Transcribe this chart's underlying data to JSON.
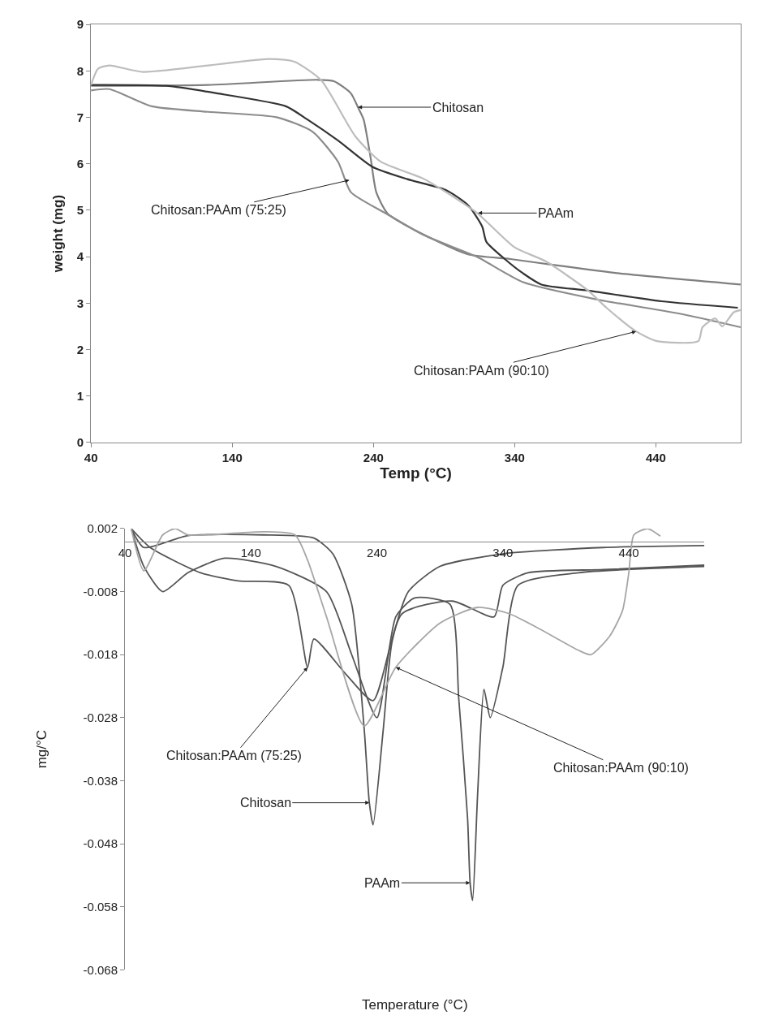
{
  "chart_data": [
    {
      "type": "line",
      "xlabel": "Temp (°C)",
      "ylabel": "weight (mg)",
      "xlim": [
        40,
        500
      ],
      "xticks": [
        40,
        140,
        240,
        340,
        440
      ],
      "ylim": [
        0,
        9
      ],
      "yticks": [
        0,
        1,
        2,
        3,
        4,
        5,
        6,
        7,
        8,
        9
      ],
      "marker": "none",
      "line_style": "solid",
      "series": [
        {
          "color": "#7f7f7f",
          "x": [
            40,
            123,
            200,
            212,
            224,
            229,
            233,
            238,
            242,
            250,
            270,
            307,
            337,
            368,
            414,
            500
          ],
          "values": [
            7.68,
            7.7,
            7.81,
            7.78,
            7.52,
            7.22,
            6.96,
            6.13,
            5.39,
            4.93,
            4.56,
            4.05,
            3.95,
            3.82,
            3.64,
            3.4
          ]
        },
        {
          "color": "#333333",
          "x": [
            40,
            93,
            129,
            178,
            193,
            215,
            239,
            264,
            291,
            307,
            317,
            320,
            333,
            346,
            359,
            392,
            444,
            498
          ],
          "values": [
            7.7,
            7.68,
            7.52,
            7.24,
            6.96,
            6.5,
            5.94,
            5.67,
            5.44,
            5.11,
            4.65,
            4.32,
            3.95,
            3.64,
            3.4,
            3.27,
            3.04,
            2.9
          ]
        },
        {
          "color": "#8c8c8c",
          "x": [
            40,
            53,
            83,
            123,
            172,
            197,
            215,
            224,
            249,
            276,
            313,
            346,
            398,
            459,
            500
          ],
          "values": [
            7.58,
            7.61,
            7.24,
            7.12,
            7.0,
            6.69,
            6.04,
            5.39,
            4.93,
            4.46,
            4.0,
            3.45,
            3.08,
            2.76,
            2.48
          ]
        },
        {
          "color": "#bdbdbd",
          "x": [
            40,
            45,
            53,
            77,
            166,
            184,
            203,
            227,
            245,
            276,
            313,
            340,
            362,
            392,
            405,
            426,
            441,
            470,
            473,
            482,
            487,
            495,
            500
          ],
          "values": [
            7.7,
            8.05,
            8.12,
            7.98,
            8.26,
            8.2,
            7.8,
            6.6,
            6.05,
            5.67,
            4.95,
            4.2,
            3.9,
            3.27,
            2.9,
            2.39,
            2.18,
            2.18,
            2.48,
            2.67,
            2.5,
            2.8,
            2.85
          ]
        }
      ],
      "annotations": [
        {
          "text": "Chitosan",
          "x": 229,
          "y": 7.22
        },
        {
          "text": "PAAm",
          "x": 314,
          "y": 4.94
        },
        {
          "text": "Chitosan:PAAm (75:25)",
          "x": 223,
          "y": 5.65
        },
        {
          "text": "Chitosan:PAAm (90:10)",
          "x": 426,
          "y": 2.39
        }
      ]
    },
    {
      "type": "line",
      "xlabel": "Temperature (°C)",
      "ylabel": "mg/°C",
      "xlim": [
        40,
        500
      ],
      "xticks": [
        40,
        140,
        240,
        340,
        440
      ],
      "ylim": [
        -0.068,
        0.002
      ],
      "yticks": [
        -0.068,
        -0.058,
        -0.048,
        -0.038,
        -0.028,
        -0.018,
        -0.008,
        0.002
      ],
      "marker": "none",
      "line_style": "solid",
      "series": [
        {
          "color": "#555555",
          "x": [
            45,
            55,
            90,
            150,
            190,
            205,
            220,
            230,
            234,
            237,
            245,
            252,
            265,
            290,
            340,
            420,
            500
          ],
          "values": [
            0.002,
            -0.001,
            0.0009,
            0.001,
            0.0005,
            -0.002,
            -0.01,
            -0.03,
            -0.0415,
            -0.045,
            -0.03,
            -0.016,
            -0.008,
            -0.004,
            -0.002,
            -0.001,
            -0.0007
          ]
        },
        {
          "color": "#555555",
          "x": [
            45,
            55,
            70,
            90,
            119,
            160,
            200,
            220,
            240,
            255,
            270,
            298,
            305,
            312,
            314,
            316,
            320,
            325,
            330,
            340,
            352,
            400,
            500
          ],
          "values": [
            0.002,
            -0.004,
            -0.008,
            -0.005,
            -0.0027,
            -0.004,
            -0.008,
            -0.018,
            -0.028,
            -0.012,
            -0.009,
            -0.01,
            -0.025,
            -0.044,
            -0.0542,
            -0.057,
            -0.04,
            -0.0235,
            -0.028,
            -0.02,
            -0.007,
            -0.005,
            -0.004
          ]
        },
        {
          "color": "#555555",
          "x": [
            45,
            60,
            100,
            130,
            170,
            185,
            190,
            215,
            237,
            260,
            300,
            333,
            340,
            360,
            420,
            500
          ],
          "values": [
            0.002,
            -0.001,
            -0.005,
            -0.0063,
            -0.007,
            -0.02,
            -0.0155,
            -0.021,
            -0.0253,
            -0.0115,
            -0.0095,
            -0.012,
            -0.007,
            -0.005,
            -0.0045,
            -0.0038
          ]
        },
        {
          "color": "#a6a6a6",
          "x": [
            45,
            55,
            70,
            80,
            90,
            150,
            175,
            185,
            200,
            230,
            255,
            290,
            320,
            345,
            370,
            400,
            410,
            425,
            435,
            440,
            444,
            455,
            465
          ],
          "values": [
            0.002,
            -0.0047,
            0.001,
            0.002,
            0.001,
            0.0015,
            0.001,
            -0.003,
            -0.012,
            -0.0293,
            -0.02,
            -0.013,
            -0.0105,
            -0.0115,
            -0.014,
            -0.0173,
            -0.018,
            -0.015,
            -0.011,
            -0.005,
            0.001,
            0.002,
            0.0008
          ]
        }
      ],
      "annotations": [
        {
          "text": "Chitosan:PAAm (75:25)",
          "x": 185,
          "y": -0.02
        },
        {
          "text": "Chitosan",
          "x": 234,
          "y": -0.0415
        },
        {
          "text": "PAAm",
          "x": 314,
          "y": -0.0542
        },
        {
          "text": "Chitosan:PAAm (90:10)",
          "x": 255,
          "y": -0.02
        }
      ]
    }
  ]
}
